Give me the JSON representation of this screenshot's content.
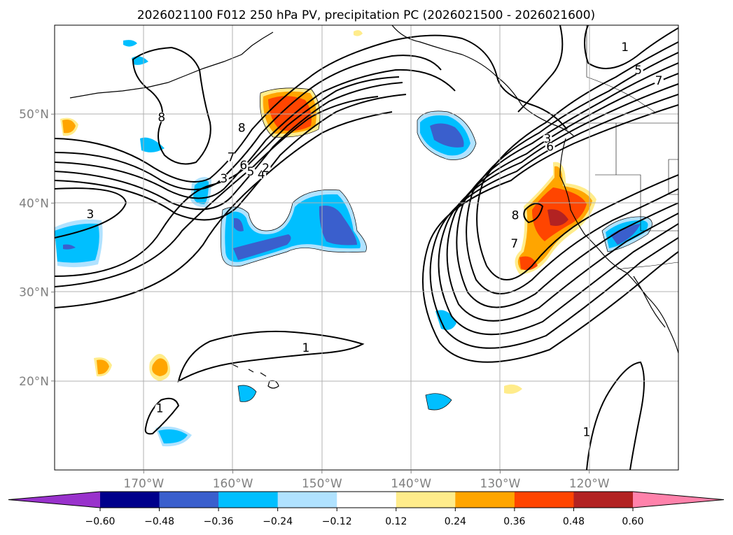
{
  "chart_data": {
    "type": "contour-map",
    "title": "2026021100 F012 250 hPa PV, precipitation PC (2026021500 - 2026021600)",
    "projection": "PlateCarree",
    "extent": {
      "lon": [
        -180,
        -110
      ],
      "lat": [
        10,
        60
      ]
    },
    "lat_ticks": [
      {
        "value": 20,
        "label": "20°N"
      },
      {
        "value": 30,
        "label": "30°N"
      },
      {
        "value": 40,
        "label": "40°N"
      },
      {
        "value": 50,
        "label": "50°N"
      }
    ],
    "lon_ticks": [
      {
        "value": -170,
        "label": "170°W"
      },
      {
        "value": -160,
        "label": "160°W"
      },
      {
        "value": -150,
        "label": "150°W"
      },
      {
        "value": -140,
        "label": "140°W"
      },
      {
        "value": -130,
        "label": "130°W"
      },
      {
        "value": -120,
        "label": "120°W"
      }
    ],
    "grid": true,
    "colorbar": {
      "orientation": "horizontal",
      "extend": "both",
      "boundaries": [
        -0.6,
        -0.48,
        -0.36,
        -0.24,
        -0.12,
        0.12,
        0.24,
        0.36,
        0.48,
        0.6
      ],
      "tick_labels": [
        "−0.60",
        "−0.48",
        "−0.36",
        "−0.24",
        "−0.12",
        "0.12",
        "0.24",
        "0.36",
        "0.48",
        "0.60"
      ],
      "colors": [
        "#9932cc",
        "#00008b",
        "#3a5fcd",
        "#00bfff",
        "#b0e2ff",
        "#ffffff",
        "#ffec8b",
        "#ffa500",
        "#ff4500",
        "#b22222",
        "#ff82ab"
      ]
    },
    "pv_contour_labels": [
      {
        "text": "8",
        "lon": -168,
        "lat": 49.2
      },
      {
        "text": "8",
        "lon": -159,
        "lat": 48.0
      },
      {
        "text": "7",
        "lon": -160.2,
        "lat": 44.7
      },
      {
        "text": "6",
        "lon": -158.8,
        "lat": 43.8
      },
      {
        "text": "5",
        "lon": -158.0,
        "lat": 43.1
      },
      {
        "text": "4",
        "lon": -156.8,
        "lat": 42.8
      },
      {
        "text": "3",
        "lon": -161.0,
        "lat": 42.3
      },
      {
        "text": "2",
        "lon": -156.3,
        "lat": 43.5
      },
      {
        "text": "3",
        "lon": -176.0,
        "lat": 38.3
      },
      {
        "text": "1",
        "lon": -151.8,
        "lat": 23.3
      },
      {
        "text": "1",
        "lon": -168.2,
        "lat": 16.5
      },
      {
        "text": "1",
        "lon": -120.3,
        "lat": 13.8
      },
      {
        "text": "3",
        "lon": -124.7,
        "lat": 46.8
      },
      {
        "text": "6",
        "lon": -124.4,
        "lat": 45.9
      },
      {
        "text": "7",
        "lon": -128.4,
        "lat": 35.0
      },
      {
        "text": "8",
        "lon": -128.3,
        "lat": 38.2
      },
      {
        "text": "1",
        "lon": -116.0,
        "lat": 57.1
      },
      {
        "text": "5",
        "lon": -114.5,
        "lat": 54.5
      },
      {
        "text": "7",
        "lon": -112.2,
        "lat": 53.3
      }
    ]
  }
}
